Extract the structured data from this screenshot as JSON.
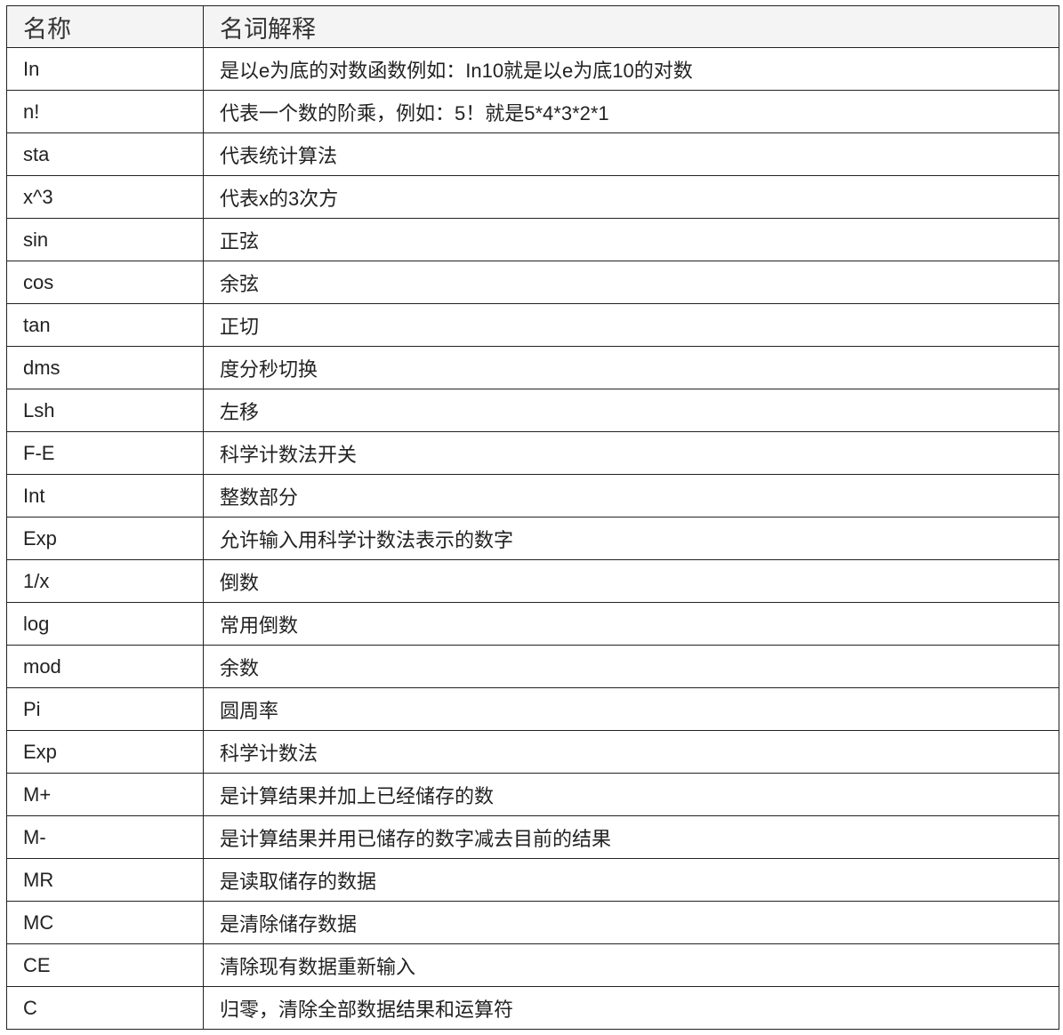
{
  "table": {
    "headers": [
      "名称",
      "名词解释"
    ],
    "rows": [
      [
        "In",
        "是以e为底的对数函数例如：In10就是以e为底10的对数"
      ],
      [
        "n!",
        "代表一个数的阶乘，例如：5！就是5*4*3*2*1"
      ],
      [
        "sta",
        "代表统计算法"
      ],
      [
        "x^3",
        "代表x的3次方"
      ],
      [
        "sin",
        "正弦"
      ],
      [
        "cos",
        "余弦"
      ],
      [
        "tan",
        "正切"
      ],
      [
        "dms",
        "度分秒切换"
      ],
      [
        "Lsh",
        "左移"
      ],
      [
        "F-E",
        "科学计数法开关"
      ],
      [
        "Int",
        "整数部分"
      ],
      [
        "Exp",
        "允许输入用科学计数法表示的数字"
      ],
      [
        "1/x",
        "倒数"
      ],
      [
        "log",
        "常用倒数"
      ],
      [
        "mod",
        "余数"
      ],
      [
        "Pi",
        "圆周率"
      ],
      [
        "Exp",
        "科学计数法"
      ],
      [
        "M+",
        "是计算结果并加上已经储存的数"
      ],
      [
        "M-",
        "是计算结果并用已储存的数字减去目前的结果"
      ],
      [
        "MR",
        "是读取储存的数据"
      ],
      [
        "MC",
        "是清除储存数据"
      ],
      [
        "CE",
        "清除现有数据重新输入"
      ],
      [
        "C",
        "归零，清除全部数据结果和运算符"
      ]
    ]
  }
}
